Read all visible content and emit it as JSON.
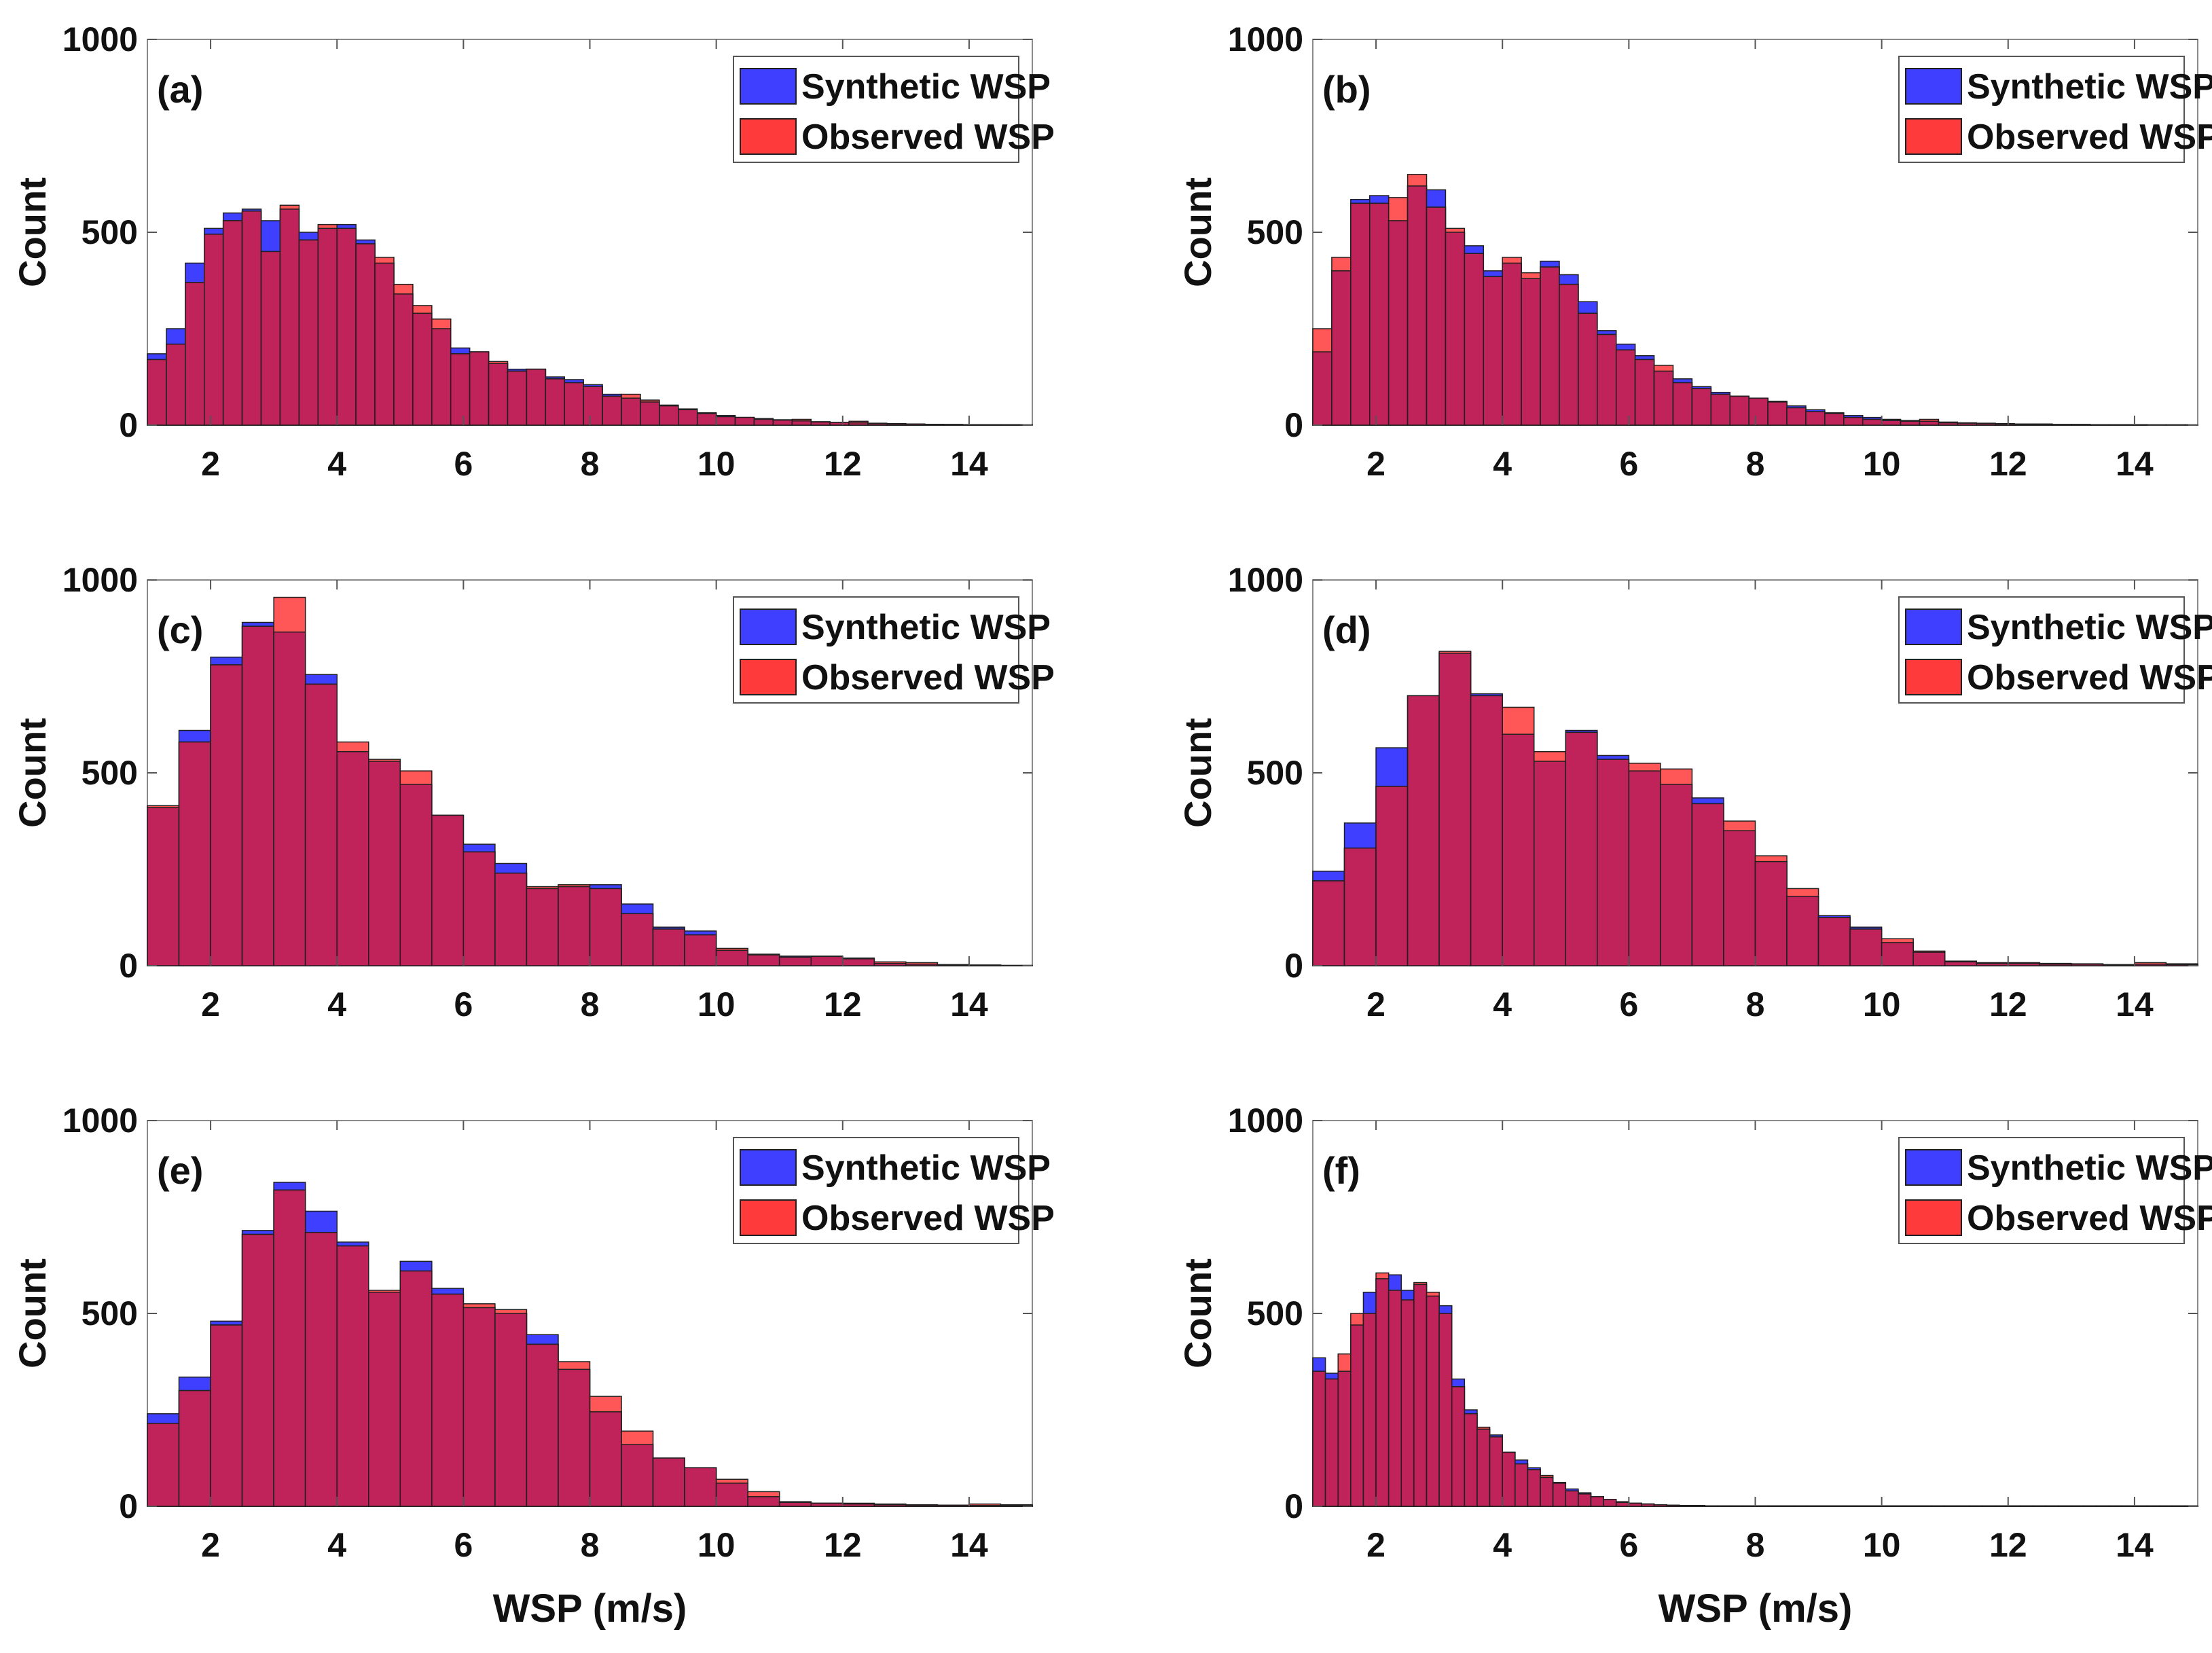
{
  "colors": {
    "synthetic": "#3f3fff",
    "observed": "#ff3a3a",
    "overlap": "#c0225a",
    "axis": "#333333",
    "background": "#ffffff"
  },
  "chart_data": [
    {
      "type": "bar",
      "panel": "(a)",
      "xlabel": "",
      "ylabel": "Count",
      "xlim": [
        1,
        15
      ],
      "ylim": [
        0,
        1000
      ],
      "xticks": [
        2,
        4,
        6,
        8,
        10,
        12,
        14
      ],
      "yticks": [
        0,
        500,
        1000
      ],
      "legend": {
        "position": "top-right",
        "entries": [
          "Synthetic WSP",
          "Observed WSP"
        ]
      },
      "bin_start": 1.0,
      "bin_width": 0.3,
      "series": [
        {
          "name": "Synthetic WSP",
          "values": [
            185,
            250,
            420,
            510,
            550,
            560,
            530,
            560,
            500,
            510,
            520,
            480,
            420,
            340,
            290,
            250,
            200,
            190,
            160,
            145,
            145,
            125,
            118,
            105,
            80,
            70,
            60,
            50,
            40,
            32,
            25,
            20,
            17,
            14,
            11,
            9,
            7,
            6,
            5,
            4,
            3,
            2,
            2,
            1,
            1,
            1,
            1
          ]
        },
        {
          "name": "Observed WSP",
          "values": [
            170,
            210,
            370,
            495,
            530,
            555,
            450,
            570,
            480,
            520,
            510,
            470,
            435,
            365,
            310,
            275,
            185,
            190,
            165,
            140,
            145,
            120,
            110,
            100,
            75,
            80,
            65,
            52,
            42,
            30,
            22,
            20,
            15,
            13,
            15,
            8,
            7,
            10,
            4,
            3,
            3,
            2,
            1,
            1,
            1,
            1,
            0
          ]
        }
      ]
    },
    {
      "type": "bar",
      "panel": "(b)",
      "xlabel": "",
      "ylabel": "Count",
      "xlim": [
        1,
        15
      ],
      "ylim": [
        0,
        1000
      ],
      "xticks": [
        2,
        4,
        6,
        8,
        10,
        12,
        14
      ],
      "yticks": [
        0,
        500,
        1000
      ],
      "legend": {
        "position": "top-right",
        "entries": [
          "Synthetic WSP",
          "Observed WSP"
        ]
      },
      "bin_start": 1.0,
      "bin_width": 0.3,
      "series": [
        {
          "name": "Synthetic WSP",
          "values": [
            190,
            400,
            585,
            595,
            530,
            620,
            610,
            500,
            465,
            400,
            420,
            380,
            425,
            390,
            320,
            245,
            210,
            180,
            140,
            120,
            100,
            85,
            75,
            70,
            60,
            50,
            40,
            32,
            25,
            20,
            15,
            12,
            10,
            8,
            6,
            5,
            4,
            3,
            3,
            2,
            2,
            1,
            1,
            1,
            1,
            1,
            1
          ]
        },
        {
          "name": "Observed WSP",
          "values": [
            250,
            435,
            575,
            575,
            590,
            650,
            565,
            510,
            445,
            385,
            435,
            395,
            410,
            365,
            290,
            235,
            195,
            170,
            155,
            110,
            95,
            80,
            75,
            70,
            62,
            45,
            35,
            30,
            20,
            15,
            12,
            10,
            15,
            6,
            5,
            4,
            3,
            2,
            2,
            1,
            1,
            1,
            1,
            1,
            0,
            0,
            0
          ]
        }
      ]
    },
    {
      "type": "bar",
      "panel": "(c)",
      "xlabel": "",
      "ylabel": "Count",
      "xlim": [
        1,
        15
      ],
      "ylim": [
        0,
        1000
      ],
      "xticks": [
        2,
        4,
        6,
        8,
        10,
        12,
        14
      ],
      "yticks": [
        0,
        500,
        1000
      ],
      "legend": {
        "position": "top-right",
        "entries": [
          "Synthetic WSP",
          "Observed WSP"
        ]
      },
      "bin_start": 1.0,
      "bin_width": 0.5,
      "series": [
        {
          "name": "Synthetic WSP",
          "values": [
            410,
            610,
            800,
            890,
            865,
            755,
            555,
            530,
            470,
            390,
            315,
            265,
            200,
            205,
            210,
            160,
            100,
            90,
            40,
            30,
            25,
            25,
            18,
            6,
            4,
            3,
            2,
            1
          ]
        },
        {
          "name": "Observed WSP",
          "values": [
            415,
            580,
            780,
            880,
            955,
            730,
            580,
            535,
            505,
            390,
            295,
            240,
            205,
            210,
            200,
            135,
            95,
            80,
            45,
            28,
            22,
            24,
            20,
            10,
            8,
            2,
            1,
            0
          ]
        }
      ]
    },
    {
      "type": "bar",
      "panel": "(d)",
      "xlabel": "",
      "ylabel": "Count",
      "xlim": [
        1,
        15
      ],
      "ylim": [
        0,
        1000
      ],
      "xticks": [
        2,
        4,
        6,
        8,
        10,
        12,
        14
      ],
      "yticks": [
        0,
        500,
        1000
      ],
      "legend": {
        "position": "top-right",
        "entries": [
          "Synthetic WSP",
          "Observed WSP"
        ]
      },
      "bin_start": 1.0,
      "bin_width": 0.5,
      "series": [
        {
          "name": "Synthetic WSP",
          "values": [
            245,
            370,
            565,
            700,
            810,
            705,
            600,
            530,
            610,
            545,
            505,
            470,
            435,
            350,
            270,
            180,
            130,
            100,
            60,
            35,
            12,
            8,
            8,
            6,
            4,
            3,
            4,
            3
          ]
        },
        {
          "name": "Observed WSP",
          "values": [
            220,
            305,
            465,
            700,
            815,
            700,
            670,
            555,
            605,
            535,
            525,
            510,
            420,
            375,
            285,
            200,
            125,
            95,
            70,
            38,
            10,
            6,
            6,
            4,
            5,
            2,
            8,
            5
          ]
        }
      ]
    },
    {
      "type": "bar",
      "panel": "(e)",
      "xlabel": "WSP (m/s)",
      "ylabel": "Count",
      "xlim": [
        1,
        15
      ],
      "ylim": [
        0,
        1000
      ],
      "xticks": [
        2,
        4,
        6,
        8,
        10,
        12,
        14
      ],
      "yticks": [
        0,
        500,
        1000
      ],
      "legend": {
        "position": "top-right",
        "entries": [
          "Synthetic WSP",
          "Observed WSP"
        ]
      },
      "bin_start": 1.0,
      "bin_width": 0.5,
      "series": [
        {
          "name": "Synthetic WSP",
          "values": [
            240,
            335,
            480,
            715,
            840,
            765,
            685,
            555,
            635,
            565,
            515,
            500,
            445,
            355,
            245,
            160,
            125,
            100,
            60,
            25,
            12,
            8,
            6,
            4,
            3,
            3,
            2,
            2
          ]
        },
        {
          "name": "Observed WSP",
          "values": [
            215,
            300,
            470,
            705,
            820,
            710,
            675,
            560,
            610,
            550,
            525,
            510,
            420,
            375,
            285,
            195,
            125,
            100,
            70,
            38,
            10,
            8,
            8,
            6,
            4,
            3,
            6,
            4
          ]
        }
      ]
    },
    {
      "type": "bar",
      "panel": "(f)",
      "xlabel": "WSP (m/s)",
      "ylabel": "Count",
      "xlim": [
        1,
        15
      ],
      "ylim": [
        0,
        1000
      ],
      "xticks": [
        2,
        4,
        6,
        8,
        10,
        12,
        14
      ],
      "yticks": [
        0,
        500,
        1000
      ],
      "legend": {
        "position": "top-right",
        "entries": [
          "Synthetic WSP",
          "Observed WSP"
        ]
      },
      "bin_start": 1.0,
      "bin_width": 0.2,
      "series": [
        {
          "name": "Synthetic WSP",
          "values": [
            385,
            345,
            350,
            470,
            555,
            590,
            600,
            560,
            575,
            545,
            520,
            330,
            250,
            200,
            185,
            140,
            120,
            100,
            75,
            60,
            45,
            35,
            25,
            18,
            12,
            8,
            6,
            4,
            3,
            2,
            2,
            1,
            1,
            1,
            1,
            1,
            1,
            1,
            1,
            1,
            1,
            1,
            1,
            1,
            1,
            1,
            1,
            1,
            1,
            1,
            1,
            1,
            1,
            1,
            1,
            1,
            1,
            1,
            1,
            1,
            1,
            1,
            1,
            1,
            1,
            1,
            1,
            1,
            1,
            1
          ]
        },
        {
          "name": "Observed WSP",
          "values": [
            350,
            330,
            395,
            500,
            500,
            605,
            560,
            535,
            580,
            555,
            500,
            310,
            240,
            205,
            180,
            140,
            110,
            95,
            80,
            62,
            40,
            32,
            25,
            18,
            10,
            8,
            6,
            4,
            3,
            2,
            2,
            1,
            1,
            1,
            1,
            1,
            1,
            1,
            1,
            1,
            1,
            1,
            1,
            1,
            1,
            1,
            1,
            1,
            1,
            1,
            1,
            1,
            1,
            1,
            1,
            1,
            1,
            1,
            1,
            1,
            1,
            1,
            1,
            1,
            1,
            1,
            1,
            1,
            1,
            1
          ]
        }
      ]
    }
  ]
}
